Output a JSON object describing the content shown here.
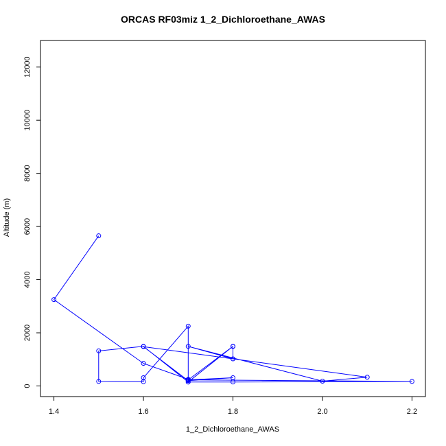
{
  "chart_data": {
    "type": "line",
    "title": "ORCAS RF03miz 1_2_Dichloroethane_AWAS",
    "xlabel": "1_2_Dichloroethane_AWAS",
    "ylabel": "Altitude (m)",
    "xlim": [
      1.37,
      2.23
    ],
    "ylim": [
      -400,
      13000
    ],
    "x_ticks": [
      "1.4",
      "1.6",
      "1.8",
      "2.0",
      "2.2"
    ],
    "y_ticks": [
      "0",
      "2000",
      "4000",
      "6000",
      "8000",
      "10000",
      "12000"
    ],
    "grid": false,
    "markers": "open-circle",
    "series": [
      {
        "color": "#0000ff",
        "points": [
          [
            1.5,
            5650
          ],
          [
            1.4,
            3250
          ],
          [
            1.6,
            850
          ],
          [
            1.7,
            250
          ],
          [
            1.7,
            150
          ],
          [
            1.8,
            150
          ],
          [
            2.2,
            170
          ],
          [
            1.7,
            230
          ],
          [
            1.8,
            1490
          ],
          [
            1.8,
            1490
          ],
          [
            1.7,
            150
          ],
          [
            1.6,
            1490
          ],
          [
            1.5,
            1320
          ],
          [
            1.5,
            170
          ],
          [
            1.6,
            160
          ],
          [
            1.6,
            310
          ],
          [
            1.7,
            2250
          ],
          [
            1.7,
            230
          ],
          [
            1.8,
            310
          ],
          [
            1.7,
            200
          ],
          [
            1.6,
            1480
          ],
          [
            2.1,
            330
          ],
          [
            2.0,
            180
          ],
          [
            1.7,
            1490
          ],
          [
            1.8,
            1020
          ],
          [
            1.8,
            1490
          ]
        ]
      }
    ]
  }
}
